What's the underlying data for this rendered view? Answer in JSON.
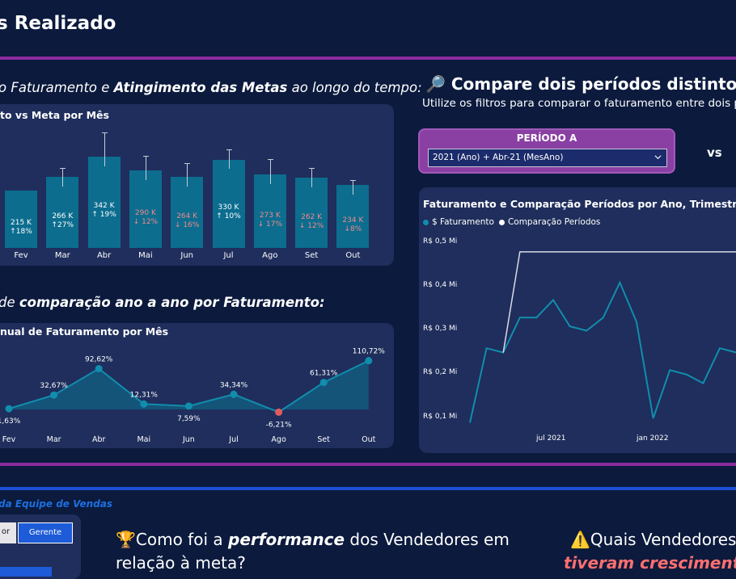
{
  "header": {
    "title": "s Realizado"
  },
  "section1": {
    "heading_pre": "o Faturamento e ",
    "heading_bold": "Atingimento das Metas",
    "heading_post": " ao longo do tempo:",
    "panel_title": "to vs Meta por Mês"
  },
  "bars": [
    {
      "month": "Fev",
      "value": "215 K",
      "delta": "↑18%",
      "positive": true
    },
    {
      "month": "Mar",
      "value": "266 K",
      "delta": "↑27%",
      "positive": true
    },
    {
      "month": "Abr",
      "value": "342 K",
      "delta": "↑ 19%",
      "positive": true
    },
    {
      "month": "Mai",
      "value": "290 K",
      "delta": "↓ 12%",
      "positive": false
    },
    {
      "month": "Jun",
      "value": "264 K",
      "delta": "↓ 16%",
      "positive": false
    },
    {
      "month": "Jul",
      "value": "330 K",
      "delta": "↑ 10%",
      "positive": true
    },
    {
      "month": "Ago",
      "value": "273 K",
      "delta": "↓ 17%",
      "positive": false
    },
    {
      "month": "Set",
      "value": "262 K",
      "delta": "↓ 12%",
      "positive": false
    },
    {
      "month": "Out",
      "value": "234 K",
      "delta": "↓8%",
      "positive": false
    }
  ],
  "section2": {
    "heading_pre": "de ",
    "heading_bold": "comparação ano a ano por Faturamento:",
    "panel_title": "nual de Faturamento por Mês"
  },
  "yoy": {
    "months": [
      "Fev",
      "Mar",
      "Abr",
      "Mai",
      "Jun",
      "Jul",
      "Ago",
      "Set",
      "Out"
    ],
    "values": [
      1.63,
      32.67,
      92.62,
      12.31,
      7.59,
      34.34,
      -6.21,
      61.31,
      110.72
    ],
    "labels": [
      "1,63%",
      "32,67%",
      "92,62%",
      "12,31%",
      "7,59%",
      "34,34%",
      "-6,21%",
      "61,31%",
      "110,72%"
    ]
  },
  "compare": {
    "icon": "🔎",
    "title": "Compare dois períodos distintos",
    "subtitle": "Utilize os filtros para comparar o faturamento entre dois p",
    "periodo_a_label": "PERÍODO A",
    "periodo_a_value": "2021 (Ano) + Abr-21 (MesAno)",
    "vs_label": "vs",
    "chart_title": "Faturamento e Comparação Períodos por Ano, Trimestre, Mês e",
    "legend": [
      "$ Faturamento",
      "Comparação Períodos"
    ],
    "y_ticks": [
      "R$ 0,5 Mi",
      "R$ 0,4 Mi",
      "R$ 0,3 Mi",
      "R$ 0,2 Mi",
      "R$ 0,1 Mi"
    ],
    "x_ticks": [
      "jul 2021",
      "jan 2022"
    ]
  },
  "team": {
    "label": "da Equipe de Vendas",
    "buttons": [
      "or",
      "Gerente"
    ]
  },
  "questions": {
    "q1_icon": "🏆",
    "q1_pre": "Como foi a ",
    "q1_bold": "performance",
    "q1_post": " dos Vendedores em",
    "q1_line2": "relação à meta?",
    "q2_icon": "⚠️",
    "q2_text": "Quais Vendedores",
    "q2_line2": "tiveram crescimento"
  },
  "colors": {
    "background": "#0b1a3d",
    "panel": "#1f2e5c",
    "bar": "#0c6d8f",
    "line": "#118dad",
    "negative": "#e05b5b",
    "accent_purple": "#8a2c9e",
    "accent_blue": "#1d4fd6"
  },
  "chart_data": [
    {
      "type": "bar",
      "title": "to vs Meta por Mês",
      "categories": [
        "Fev",
        "Mar",
        "Abr",
        "Mai",
        "Jun",
        "Jul",
        "Ago",
        "Set",
        "Out"
      ],
      "values": [
        215,
        266,
        342,
        290,
        264,
        330,
        273,
        262,
        234
      ],
      "meta": [
        215,
        298,
        430,
        344,
        316,
        368,
        331,
        297,
        253
      ],
      "ylim": [
        0,
        440
      ]
    },
    {
      "type": "area",
      "title": "nual de Faturamento por Mês",
      "categories": [
        "Fev",
        "Mar",
        "Abr",
        "Mai",
        "Jun",
        "Jul",
        "Ago",
        "Set",
        "Out"
      ],
      "values": [
        1.63,
        32.67,
        92.62,
        12.31,
        7.59,
        34.34,
        -6.21,
        61.31,
        110.72
      ]
    },
    {
      "type": "line",
      "title": "Faturamento e Comparação Períodos por Ano, Trimestre, Mês e",
      "series": [
        {
          "name": "$ Faturamento",
          "values": [
            0.09,
            0.26,
            0.25,
            0.33,
            0.33,
            0.37,
            0.31,
            0.3,
            0.33,
            0.41,
            0.32,
            0.1,
            0.21,
            0.2,
            0.18,
            0.26,
            0.25
          ]
        },
        {
          "name": "Comparação Períodos",
          "values": [
            null,
            null,
            0.25,
            0.48,
            0.48,
            0.48,
            0.48,
            0.48,
            0.48,
            0.48,
            0.48,
            0.48,
            0.48,
            0.48,
            0.48,
            0.48,
            0.48
          ]
        }
      ],
      "ylim": [
        0.1,
        0.5
      ]
    }
  ]
}
